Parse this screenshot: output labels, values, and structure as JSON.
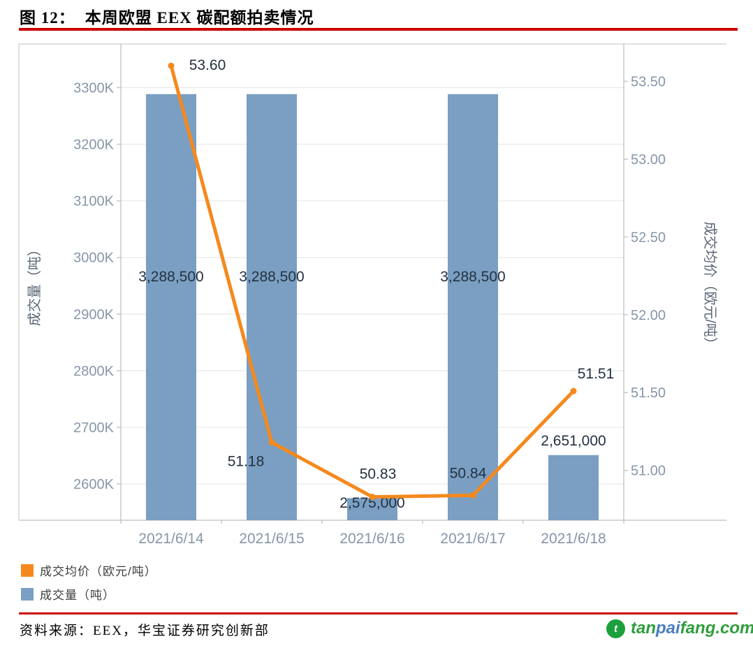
{
  "title": {
    "prefix": "图 12：",
    "text": "本周欧盟 EEX 碳配额拍卖情况"
  },
  "chart_data": {
    "type": "combo-bar-line-dual-axis",
    "categories": [
      "2021/6/14",
      "2021/6/15",
      "2021/6/16",
      "2021/6/17",
      "2021/6/18"
    ],
    "series": [
      {
        "name": "成交量（吨）",
        "type": "bar",
        "axis": "left",
        "values": [
          3288500,
          3288500,
          2575000,
          3288500,
          2651000
        ],
        "labels": [
          "3,288,500",
          "3,288,500",
          "2,575,000",
          "3,288,500",
          "2,651,000"
        ],
        "color": "#7a9fc2"
      },
      {
        "name": "成交均价（欧元/吨）",
        "type": "line",
        "axis": "right",
        "values": [
          53.6,
          51.18,
          50.83,
          50.84,
          51.51
        ],
        "labels": [
          "53.60",
          "51.18",
          "50.83",
          "50.84",
          "51.51"
        ],
        "color": "#f5891d"
      }
    ],
    "left_axis": {
      "title": "成交量（吨）",
      "tick_labels": [
        "3300K",
        "3200K",
        "3100K",
        "3000K",
        "2900K",
        "2800K",
        "2700K",
        "2600K"
      ],
      "tick_values": [
        3300000,
        3200000,
        3100000,
        3000000,
        2900000,
        2800000,
        2700000,
        2600000
      ],
      "range": [
        2536000,
        3377000
      ]
    },
    "right_axis": {
      "title": "成交均价（欧元/吨）",
      "tick_labels": [
        "53.50",
        "53.00",
        "52.50",
        "52.00",
        "51.50",
        "51.00"
      ],
      "tick_values": [
        53.5,
        53.0,
        52.5,
        52.0,
        51.5,
        51.0
      ],
      "range": [
        50.68,
        53.74
      ]
    },
    "grid": "horizontal-left-axis",
    "legend_position": "bottom-left"
  },
  "legend": {
    "items": [
      {
        "label": "成交均价（欧元/吨）",
        "color": "#f5891d"
      },
      {
        "label": "成交量（吨）",
        "color": "#7a9fc2"
      }
    ]
  },
  "source": {
    "text": "资料来源：EEX，华宝证券研究创新部"
  },
  "logo": {
    "icon_letter": "t",
    "parts": [
      {
        "text": "tan",
        "color": "#2f9e3c"
      },
      {
        "text": "pai",
        "color": "#4a7ec0"
      },
      {
        "text": "fang.com",
        "color": "#2f9e3c"
      }
    ],
    "icon_color": "#1ba03c"
  },
  "colors": {
    "bar": "#7a9fc2",
    "line": "#f5891d",
    "tick_text": "#8796a8",
    "data_label": "#243142",
    "axis_title": "#5a6675",
    "grid": "#e9e9e9",
    "frame": "#d6d6d6",
    "rule_red": "#cc0000"
  }
}
